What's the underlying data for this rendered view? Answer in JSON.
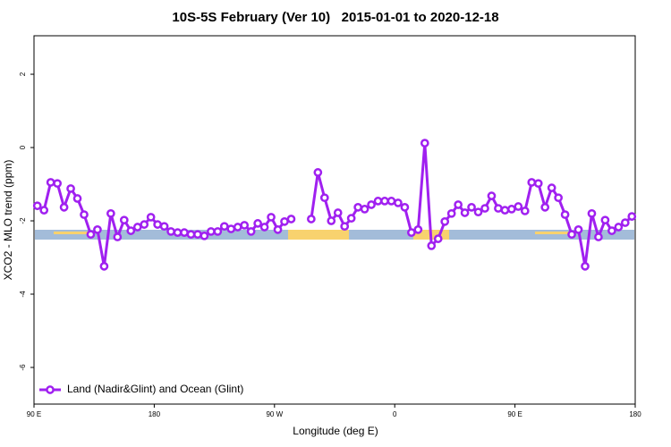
{
  "chart_data": {
    "type": "line",
    "title": "10S-5S February (Ver 10)   2015-01-01 to 2020-12-18",
    "xlabel": "Longitude (deg E)",
    "ylabel": "XCO2 - MLO trend (ppm)",
    "xlim": [
      90,
      540
    ],
    "xticks": [
      {
        "value": 90,
        "label": "90 E"
      },
      180,
      {
        "value": 270,
        "label": "90 W"
      },
      {
        "value": 360,
        "label": "0"
      },
      {
        "value": 450,
        "label": "90 E"
      },
      {
        "value": 540,
        "label": "180"
      }
    ],
    "ylim": [
      -7,
      3.05
    ],
    "yticks": [
      -6,
      -4,
      -2,
      0,
      2
    ],
    "legend": "bottom-left",
    "x": [
      92.5,
      97.5,
      102.5,
      107.5,
      112.5,
      117.5,
      122.5,
      127.5,
      132.5,
      137.5,
      142.5,
      147.5,
      152.5,
      157.5,
      162.5,
      167.5,
      172.5,
      177.5,
      182.5,
      187.5,
      192.5,
      197.5,
      202.5,
      207.5,
      212.5,
      217.5,
      222.5,
      227.5,
      232.5,
      237.5,
      242.5,
      247.5,
      252.5,
      257.5,
      262.5,
      267.5,
      272.5,
      277.5,
      282.5,
      287.5,
      292.5,
      297.5,
      302.5,
      307.5,
      312.5,
      317.5,
      322.5,
      327.5,
      332.5,
      337.5,
      342.5,
      347.5,
      352.5,
      357.5,
      362.5,
      367.5,
      372.5,
      377.5,
      382.5,
      387.5,
      392.5,
      397.5,
      402.5,
      407.5,
      412.5,
      417.5,
      422.5,
      427.5,
      432.5,
      437.5,
      442.5,
      447.5,
      452.5,
      457.5,
      462.5,
      467.5,
      472.5,
      477.5,
      482.5,
      487.5,
      492.5,
      497.5,
      502.5,
      507.5,
      512.5,
      517.5,
      522.5,
      527.5,
      532.5,
      537.5
    ],
    "series": [
      {
        "name": "Land (Nadir&Glint) and Ocean (Glint)",
        "color": "#a020f0",
        "values": [
          -1.59,
          -1.71,
          -0.95,
          -0.98,
          -1.63,
          -1.12,
          -1.39,
          -1.83,
          -2.37,
          -2.24,
          -3.24,
          -1.8,
          -2.44,
          -1.98,
          -2.27,
          -2.17,
          -2.1,
          -1.9,
          -2.1,
          -2.15,
          -2.29,
          -2.32,
          -2.32,
          -2.37,
          -2.37,
          -2.41,
          -2.29,
          -2.29,
          -2.15,
          -2.22,
          -2.17,
          -2.12,
          -2.29,
          -2.07,
          -2.17,
          -1.9,
          -2.24,
          -2.02,
          -1.95,
          null,
          null,
          -1.95,
          -0.68,
          -1.37,
          -2.0,
          -1.78,
          -2.15,
          -1.93,
          -1.63,
          -1.68,
          -1.56,
          -1.46,
          -1.46,
          -1.46,
          -1.51,
          -1.63,
          -2.32,
          -2.24,
          0.12,
          -2.68,
          -2.49,
          -2.02,
          -1.8,
          -1.56,
          -1.78,
          -1.63,
          -1.76,
          -1.66,
          -1.32,
          -1.66,
          -1.71,
          -1.68,
          -1.61,
          -1.73,
          -0.95,
          -0.98,
          -1.63,
          -1.1,
          -1.37,
          -1.83,
          -2.37,
          -2.24,
          -3.24,
          -1.8,
          -2.44,
          -1.98,
          -2.27,
          -2.17,
          -2.05,
          -1.88
        ]
      }
    ]
  }
}
